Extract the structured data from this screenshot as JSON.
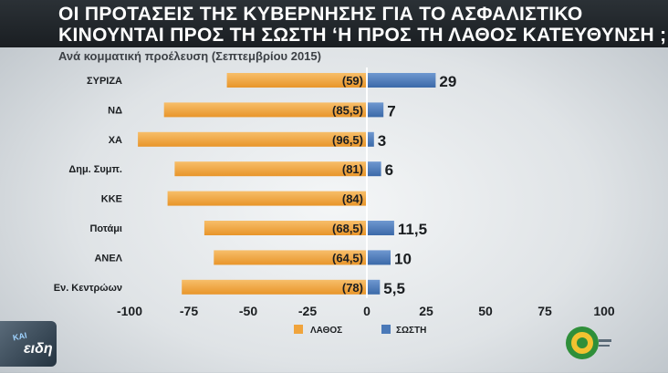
{
  "title": {
    "line1": "ΟΙ ΠΡΟΤΑΣΕΙΣ ΤΗΣ ΚΥΒΕΡΝΗΣΗΣ ΓΙΑ ΤΟ ΑΣΦΑΛΙΣΤΙΚΟ",
    "line2": "ΚΙΝΟΥΝΤΑΙ ΠΡΟΣ ΤΗ ΣΩΣΤΗ ‘Η ΠΡΟΣ ΤΗ ΛΑΘΟΣ ΚΑΤΕΥΘΥΝΣΗ ;"
  },
  "subtitle": "Ανά κομματική προέλευση (Σεπτεμβρίου 2015)",
  "logos": {
    "left_word": "ειδη",
    "left_tag": "ΚΑΙ"
  },
  "colors": {
    "wrong": "#f0a43c",
    "right": "#4a79b8",
    "header": "#1f2428"
  },
  "chart_data": {
    "type": "bar",
    "orientation": "horizontal-diverging",
    "categories": [
      "ΣΥΡΙΖΑ",
      "ΝΔ",
      "ΧΑ",
      "Δημ. Συμπ.",
      "ΚΚΕ",
      "Ποτάμι",
      "ΑΝΕΛ",
      "Εν. Κεντρώων"
    ],
    "series": [
      {
        "name": "ΛΑΘΟΣ",
        "values": [
          59,
          85.5,
          96.5,
          81,
          84,
          68.5,
          64.5,
          78
        ],
        "labels": [
          "(59)",
          "(85,5)",
          "(96,5)",
          "(81)",
          "(84)",
          "(68,5)",
          "(64,5)",
          "(78)"
        ],
        "color": "#f0a43c"
      },
      {
        "name": "ΣΩΣΤΗ",
        "values": [
          29,
          7,
          3,
          6,
          0,
          11.5,
          10,
          5.5
        ],
        "labels": [
          "29",
          "7",
          "3",
          "6",
          "",
          "11,5",
          "10",
          "5,5"
        ],
        "color": "#4a79b8"
      }
    ],
    "xlim": [
      -100,
      100
    ],
    "xticks": [
      -100,
      -75,
      -50,
      -25,
      0,
      25,
      50,
      75,
      100
    ],
    "xtick_labels": [
      "-100",
      "-75",
      "-50",
      "-25",
      "0",
      "25",
      "50",
      "75",
      "100"
    ],
    "legend_position": "bottom-center",
    "grid": false
  }
}
